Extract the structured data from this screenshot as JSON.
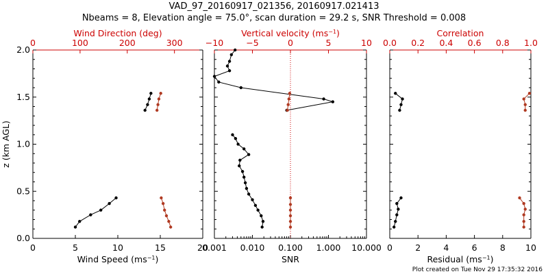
{
  "title_line1": "VAD_97_20160917_021356, 20160917.021413",
  "title_line2": "Nbeams = 8, Elevation angle = 75.0°, scan duration = 29.2 s, SNR Threshold = 0.008",
  "footer": "Plot created on Tue Nov 29 17:35:32 2016",
  "colors": {
    "black": "#000000",
    "red": "#cc0000",
    "marker_red": "#b03a22"
  },
  "chart_data": [
    {
      "type": "line",
      "name": "wind-panel",
      "xlabel": "Wind Speed (ms",
      "xlabel_sup": "−1",
      "xlabel_end": ")",
      "xlim": [
        0,
        20
      ],
      "xticks": [
        "0",
        "5",
        "10",
        "15",
        "20"
      ],
      "ylabel": "z (km AGL)",
      "ylim": [
        0,
        2
      ],
      "yticks": [
        "0.0",
        "0.5",
        "1.0",
        "1.5",
        "2.0"
      ],
      "top_label": "Wind Direction (deg)",
      "top_lim": [
        0,
        360
      ],
      "top_ticks": [
        "0",
        "100",
        "200",
        "300"
      ],
      "series": [
        {
          "axis": "bottom",
          "color": "black",
          "segments": [
            [
              [
                5.0,
                0.12
              ],
              [
                5.5,
                0.18
              ],
              [
                6.8,
                0.25
              ],
              [
                8.0,
                0.3
              ],
              [
                9.0,
                0.37
              ],
              [
                9.8,
                0.43
              ]
            ],
            [
              [
                13.2,
                1.36
              ],
              [
                13.5,
                1.42
              ],
              [
                13.7,
                1.48
              ],
              [
                13.9,
                1.54
              ]
            ]
          ]
        },
        {
          "axis": "top",
          "color": "marker_red",
          "segments": [
            [
              [
                292,
                0.12
              ],
              [
                288,
                0.18
              ],
              [
                283,
                0.24
              ],
              [
                279,
                0.3
              ],
              [
                276,
                0.37
              ],
              [
                272,
                0.43
              ]
            ],
            [
              [
                263,
                1.36
              ],
              [
                265,
                1.42
              ],
              [
                267,
                1.48
              ],
              [
                271,
                1.54
              ]
            ]
          ]
        }
      ]
    },
    {
      "type": "line",
      "name": "snr-panel",
      "xlabel": "SNR",
      "xscale": "log",
      "xlim": [
        0.001,
        10
      ],
      "xticks": [
        "0.001",
        "0.010",
        "0.100",
        "1.000",
        "10.000"
      ],
      "top_label": "Vertical velocity (ms",
      "top_label_sup": "−1",
      "top_label_end": ")",
      "top_lim": [
        -10,
        10
      ],
      "top_ticks": [
        "−10",
        "−5",
        "0",
        "5",
        "10"
      ],
      "threshold_line_vv": 0,
      "series": [
        {
          "axis": "bottom",
          "color": "black",
          "segments": [
            [
              [
                0.018,
                0.12
              ],
              [
                0.019,
                0.18
              ],
              [
                0.017,
                0.24
              ],
              [
                0.014,
                0.3
              ],
              [
                0.012,
                0.35
              ],
              [
                0.01,
                0.41
              ],
              [
                0.008,
                0.47
              ],
              [
                0.007,
                0.53
              ],
              [
                0.0065,
                0.59
              ],
              [
                0.006,
                0.65
              ],
              [
                0.0055,
                0.71
              ],
              [
                0.0045,
                0.77
              ],
              [
                0.0047,
                0.83
              ],
              [
                0.008,
                0.89
              ],
              [
                0.006,
                0.95
              ],
              [
                0.0042,
                1.0
              ],
              [
                0.0036,
                1.06
              ],
              [
                0.003,
                1.1
              ]
            ],
            [
              [
                0.08,
                1.36
              ],
              [
                1.3,
                1.45
              ],
              [
                0.75,
                1.48
              ],
              [
                0.005,
                1.6
              ],
              [
                0.0013,
                1.66
              ],
              [
                0.001,
                1.72
              ],
              [
                0.0025,
                1.78
              ],
              [
                0.0022,
                1.83
              ],
              [
                0.0025,
                1.88
              ],
              [
                0.0028,
                1.95
              ],
              [
                0.0035,
                2.0
              ]
            ]
          ]
        },
        {
          "axis": "top",
          "color": "marker_red",
          "segments": [
            [
              [
                0,
                0.12
              ],
              [
                0,
                0.18
              ],
              [
                0,
                0.24
              ],
              [
                0,
                0.3
              ],
              [
                0,
                0.36
              ],
              [
                0,
                0.43
              ]
            ],
            [
              [
                -0.4,
                1.36
              ],
              [
                -0.3,
                1.42
              ],
              [
                -0.2,
                1.48
              ],
              [
                -0.1,
                1.54
              ]
            ]
          ]
        }
      ]
    },
    {
      "type": "line",
      "name": "residual-panel",
      "xlabel": "Residual  (ms",
      "xlabel_sup": "−1",
      "xlabel_end": ")",
      "xlim": [
        0,
        10
      ],
      "xticks": [
        "0",
        "2",
        "4",
        "6",
        "8",
        "10"
      ],
      "top_label": "Correlation",
      "top_lim": [
        0,
        1
      ],
      "top_ticks": [
        "0.0",
        "0.2",
        "0.4",
        "0.6",
        "0.8",
        "1.0"
      ],
      "series": [
        {
          "axis": "bottom",
          "color": "black",
          "segments": [
            [
              [
                0.3,
                0.12
              ],
              [
                0.4,
                0.18
              ],
              [
                0.5,
                0.25
              ],
              [
                0.6,
                0.31
              ],
              [
                0.5,
                0.37
              ],
              [
                0.8,
                0.43
              ]
            ],
            [
              [
                0.7,
                1.36
              ],
              [
                0.8,
                1.42
              ],
              [
                0.9,
                1.48
              ],
              [
                0.4,
                1.54
              ]
            ]
          ]
        },
        {
          "axis": "top",
          "color": "marker_red",
          "segments": [
            [
              [
                0.95,
                0.12
              ],
              [
                0.95,
                0.18
              ],
              [
                0.95,
                0.25
              ],
              [
                0.96,
                0.31
              ],
              [
                0.95,
                0.37
              ],
              [
                0.92,
                0.43
              ]
            ],
            [
              [
                0.96,
                1.36
              ],
              [
                0.96,
                1.42
              ],
              [
                0.95,
                1.48
              ],
              [
                0.99,
                1.54
              ]
            ]
          ]
        }
      ]
    }
  ]
}
